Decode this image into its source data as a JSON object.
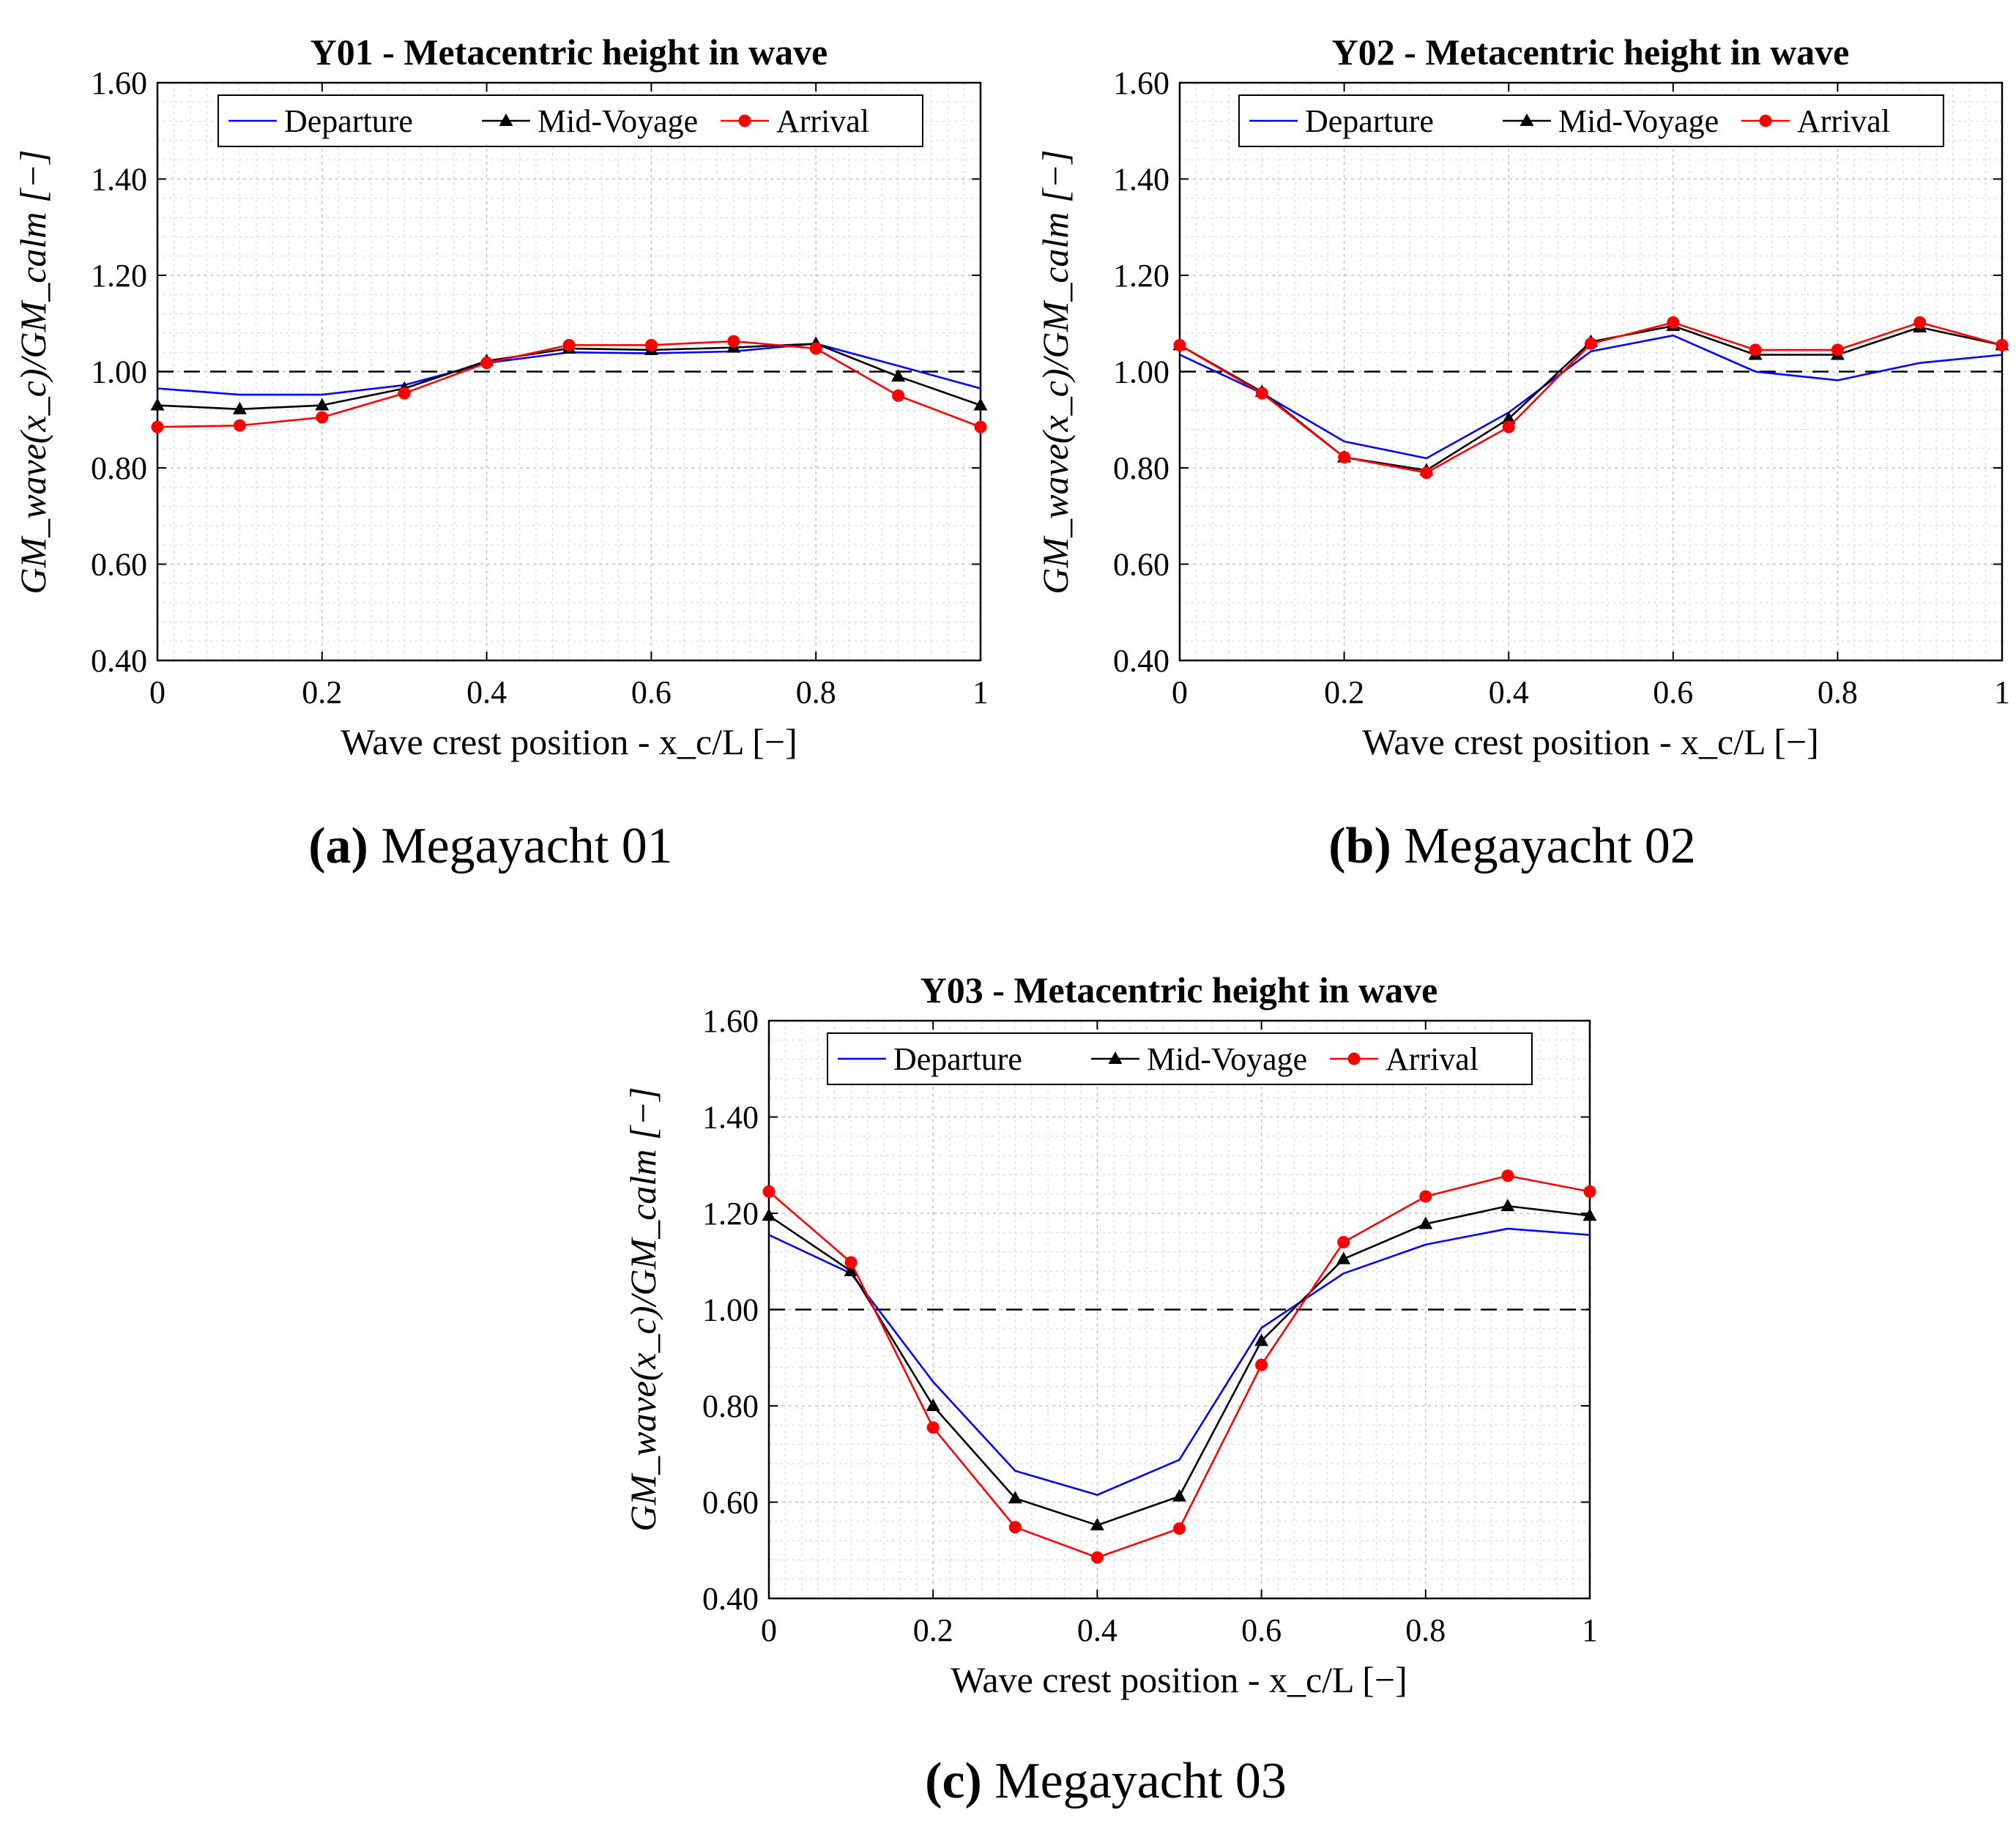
{
  "chart_data": [
    {
      "id": "y01",
      "type": "line",
      "title": "Y01 - Metacentric height in wave",
      "caption_letter": "(a)",
      "caption_text": " Megayacht 01",
      "xlabel": "Wave crest position - x_c/L [−]",
      "ylabel": "GM_wave(x_c)/GM_calm [−]",
      "xlim": [
        0,
        1
      ],
      "ylim": [
        0.4,
        1.6
      ],
      "xticks": [
        0,
        0.2,
        0.4,
        0.6,
        0.8,
        1
      ],
      "xtick_labels": [
        "0",
        "0.2",
        "0.4",
        "0.6",
        "0.8",
        "1"
      ],
      "yticks": [
        0.4,
        0.6,
        0.8,
        1.0,
        1.2,
        1.4,
        1.6
      ],
      "ytick_labels": [
        "0.40",
        "0.60",
        "0.80",
        "1.00",
        "1.20",
        "1.40",
        "1.60"
      ],
      "reference_line": 1.0,
      "legend_position": "top-center",
      "x": [
        0,
        0.1,
        0.2,
        0.3,
        0.4,
        0.5,
        0.6,
        0.7,
        0.8,
        0.9,
        1.0
      ],
      "series": [
        {
          "name": "Departure",
          "color": "#0000ff",
          "marker": "none",
          "values": [
            0.965,
            0.952,
            0.952,
            0.972,
            1.018,
            1.04,
            1.038,
            1.042,
            1.058,
            1.012,
            0.965
          ]
        },
        {
          "name": "Mid-Voyage",
          "color": "#000000",
          "marker": "triangle",
          "values": [
            0.93,
            0.922,
            0.93,
            0.965,
            1.022,
            1.048,
            1.045,
            1.05,
            1.058,
            0.99,
            0.93
          ]
        },
        {
          "name": "Arrival",
          "color": "#ff0000",
          "marker": "circle",
          "values": [
            0.885,
            0.888,
            0.905,
            0.955,
            1.018,
            1.055,
            1.055,
            1.063,
            1.048,
            0.95,
            0.885
          ]
        }
      ]
    },
    {
      "id": "y02",
      "type": "line",
      "title": "Y02 - Metacentric height in wave",
      "caption_letter": "(b)",
      "caption_text": " Megayacht 02",
      "xlabel": "Wave crest position - x_c/L [−]",
      "ylabel": "GM_wave(x_c)/GM_calm [−]",
      "xlim": [
        0,
        1
      ],
      "ylim": [
        0.4,
        1.6
      ],
      "xticks": [
        0,
        0.2,
        0.4,
        0.6,
        0.8,
        1
      ],
      "xtick_labels": [
        "0",
        "0.2",
        "0.4",
        "0.6",
        "0.8",
        "1"
      ],
      "yticks": [
        0.4,
        0.6,
        0.8,
        1.0,
        1.2,
        1.4,
        1.6
      ],
      "ytick_labels": [
        "0.40",
        "0.60",
        "0.80",
        "1.00",
        "1.20",
        "1.40",
        "1.60"
      ],
      "reference_line": 1.0,
      "legend_position": "top-center",
      "x": [
        0,
        0.1,
        0.2,
        0.3,
        0.4,
        0.5,
        0.6,
        0.7,
        0.8,
        0.9,
        1.0
      ],
      "series": [
        {
          "name": "Departure",
          "color": "#0000ff",
          "marker": "none",
          "values": [
            1.035,
            0.955,
            0.855,
            0.82,
            0.915,
            1.042,
            1.075,
            1.0,
            0.982,
            1.018,
            1.035
          ]
        },
        {
          "name": "Mid-Voyage",
          "color": "#000000",
          "marker": "triangle",
          "values": [
            1.055,
            0.958,
            0.822,
            0.795,
            0.902,
            1.062,
            1.095,
            1.035,
            1.035,
            1.092,
            1.055
          ]
        },
        {
          "name": "Arrival",
          "color": "#ff0000",
          "marker": "circle",
          "values": [
            1.055,
            0.955,
            0.822,
            0.79,
            0.885,
            1.058,
            1.102,
            1.045,
            1.045,
            1.102,
            1.055
          ]
        }
      ]
    },
    {
      "id": "y03",
      "type": "line",
      "title": "Y03 - Metacentric height in wave",
      "caption_letter": "(c)",
      "caption_text": " Megayacht 03",
      "xlabel": "Wave crest position - x_c/L [−]",
      "ylabel": "GM_wave(x_c)/GM_calm [−]",
      "xlim": [
        0,
        1
      ],
      "ylim": [
        0.4,
        1.6
      ],
      "xticks": [
        0,
        0.2,
        0.4,
        0.6,
        0.8,
        1
      ],
      "xtick_labels": [
        "0",
        "0.2",
        "0.4",
        "0.6",
        "0.8",
        "1"
      ],
      "yticks": [
        0.4,
        0.6,
        0.8,
        1.0,
        1.2,
        1.4,
        1.6
      ],
      "ytick_labels": [
        "0.40",
        "0.60",
        "0.80",
        "1.00",
        "1.20",
        "1.40",
        "1.60"
      ],
      "reference_line": 1.0,
      "legend_position": "top-center",
      "x": [
        0,
        0.1,
        0.2,
        0.3,
        0.4,
        0.5,
        0.6,
        0.7,
        0.8,
        0.9,
        1.0
      ],
      "series": [
        {
          "name": "Departure",
          "color": "#0000ff",
          "marker": "none",
          "values": [
            1.155,
            1.075,
            0.85,
            0.665,
            0.615,
            0.688,
            0.962,
            1.075,
            1.135,
            1.168,
            1.155
          ]
        },
        {
          "name": "Mid-Voyage",
          "color": "#000000",
          "marker": "triangle",
          "values": [
            1.195,
            1.08,
            0.8,
            0.608,
            0.552,
            0.612,
            0.935,
            1.105,
            1.178,
            1.215,
            1.195
          ]
        },
        {
          "name": "Arrival",
          "color": "#ff0000",
          "marker": "circle",
          "values": [
            1.245,
            1.098,
            0.755,
            0.548,
            0.485,
            0.545,
            0.885,
            1.14,
            1.235,
            1.278,
            1.245
          ]
        }
      ]
    }
  ]
}
